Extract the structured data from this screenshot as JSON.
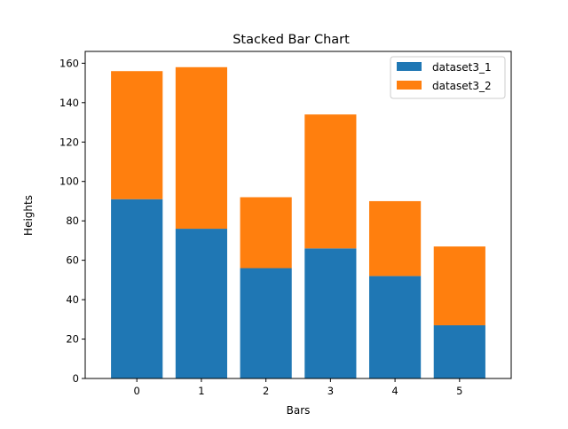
{
  "chart_data": {
    "type": "bar",
    "stacked": true,
    "title": "Stacked Bar Chart",
    "xlabel": "Bars",
    "ylabel": "Heights",
    "categories": [
      "0",
      "1",
      "2",
      "3",
      "4",
      "5"
    ],
    "series": [
      {
        "name": "dataset3_1",
        "values": [
          91,
          76,
          56,
          66,
          52,
          27
        ],
        "color": "#1f77b4"
      },
      {
        "name": "dataset3_2",
        "values": [
          65,
          82,
          36,
          68,
          38,
          40
        ],
        "color": "#ff7f0e"
      }
    ],
    "ylim": [
      0,
      166
    ],
    "yticks": [
      0,
      20,
      40,
      60,
      80,
      100,
      120,
      140,
      160
    ],
    "legend_position": "top-right",
    "grid": false
  }
}
